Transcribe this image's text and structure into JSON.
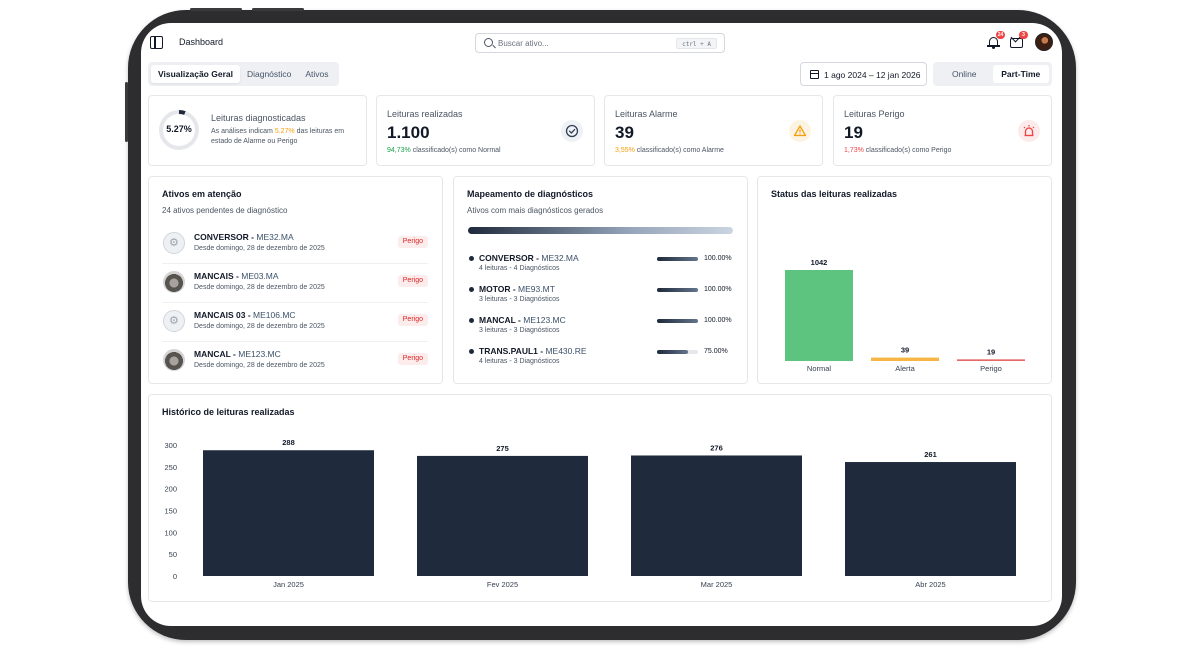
{
  "header": {
    "title": "Dashboard",
    "search_placeholder": "Buscar ativo...",
    "search_shortcut": "ctrl + A",
    "notifications_count": "24",
    "messages_count": "3"
  },
  "tabs": [
    "Visualização Geral",
    "Diagnóstico",
    "Ativos"
  ],
  "active_tab": "Visualização Geral",
  "date_range": "1 ago 2024 – 12 jan 2026",
  "modes": [
    "Online",
    "Part-Time"
  ],
  "active_mode": "Part-Time",
  "diagnosed": {
    "percent_label": "5.27%",
    "percent_value": 5.27,
    "title": "Leituras diagnosticadas",
    "desc_before": "As análises indicam ",
    "desc_pct": "5.27%",
    "desc_after": " das leituras em estado de Alarme ou Perigo"
  },
  "kpis": [
    {
      "title": "Leituras realizadas",
      "value": "1.100",
      "pct": "94,73%",
      "sub": " classificado(s) como Normal",
      "icon": "check-circle-icon",
      "color": "#16a34a"
    },
    {
      "title": "Leituras Alarme",
      "value": "39",
      "pct": "3,55%",
      "sub": " classificado(s) como Alarme",
      "icon": "warning-triangle-icon",
      "color": "#f59e0b"
    },
    {
      "title": "Leituras Perigo",
      "value": "19",
      "pct": "1,73%",
      "sub": " classificado(s) como Perigo",
      "icon": "siren-icon",
      "color": "#ef4444"
    }
  ],
  "attention": {
    "title": "Ativos em atenção",
    "subtitle": "24 ativos pendentes de diagnóstico",
    "items": [
      {
        "name": "CONVERSOR",
        "code": "ME32.MA",
        "since": "Desde domingo, 28 de dezembro de 2025",
        "status": "Perigo",
        "thumb": "gear-icon"
      },
      {
        "name": "MANCAIS",
        "code": "ME03.MA",
        "since": "Desde domingo, 28 de dezembro de 2025",
        "status": "Perigo",
        "thumb": "photo"
      },
      {
        "name": "MANCAIS 03",
        "code": "ME106.MC",
        "since": "Desde domingo, 28 de dezembro de 2025",
        "status": "Perigo",
        "thumb": "gear-icon"
      },
      {
        "name": "MANCAL",
        "code": "ME123.MC",
        "since": "Desde domingo, 28 de dezembro de 2025",
        "status": "Perigo",
        "thumb": "photo"
      }
    ]
  },
  "mapping": {
    "title": "Mapeamento de diagnósticos",
    "subtitle": "Ativos com mais diagnósticos gerados",
    "items": [
      {
        "name": "CONVERSOR",
        "code": "ME32.MA",
        "sub": "4 leituras - 4 Diagnósticos",
        "pct_label": "100.00%",
        "pct": 100
      },
      {
        "name": "MOTOR",
        "code": "ME93.MT",
        "sub": "3 leituras - 3 Diagnósticos",
        "pct_label": "100.00%",
        "pct": 100
      },
      {
        "name": "MANCAL",
        "code": "ME123.MC",
        "sub": "3 leituras - 3 Diagnósticos",
        "pct_label": "100.00%",
        "pct": 100
      },
      {
        "name": "TRANS.PAUL1",
        "code": "ME430.RE",
        "sub": "4 leituras - 3 Diagnósticos",
        "pct_label": "75.00%",
        "pct": 75
      }
    ]
  },
  "chart_data": [
    {
      "type": "bar",
      "title": "Status das leituras realizadas",
      "categories": [
        "Normal",
        "Alerta",
        "Perigo"
      ],
      "values": [
        1042,
        39,
        19
      ],
      "colors": [
        "#5cc47e",
        "#f6b544",
        "#e66868"
      ],
      "value_labels": true,
      "grid": false
    },
    {
      "type": "bar",
      "title": "Histórico de leituras realizadas",
      "categories": [
        "Jan 2025",
        "Fev 2025",
        "Mar 2025",
        "Abr 2025"
      ],
      "values": [
        288,
        275,
        276,
        261
      ],
      "ylim": [
        0,
        300
      ],
      "yticks": [
        300,
        250,
        200,
        150,
        100,
        50,
        0
      ],
      "color": "#1f2a3c",
      "value_labels": true,
      "grid": false
    }
  ]
}
